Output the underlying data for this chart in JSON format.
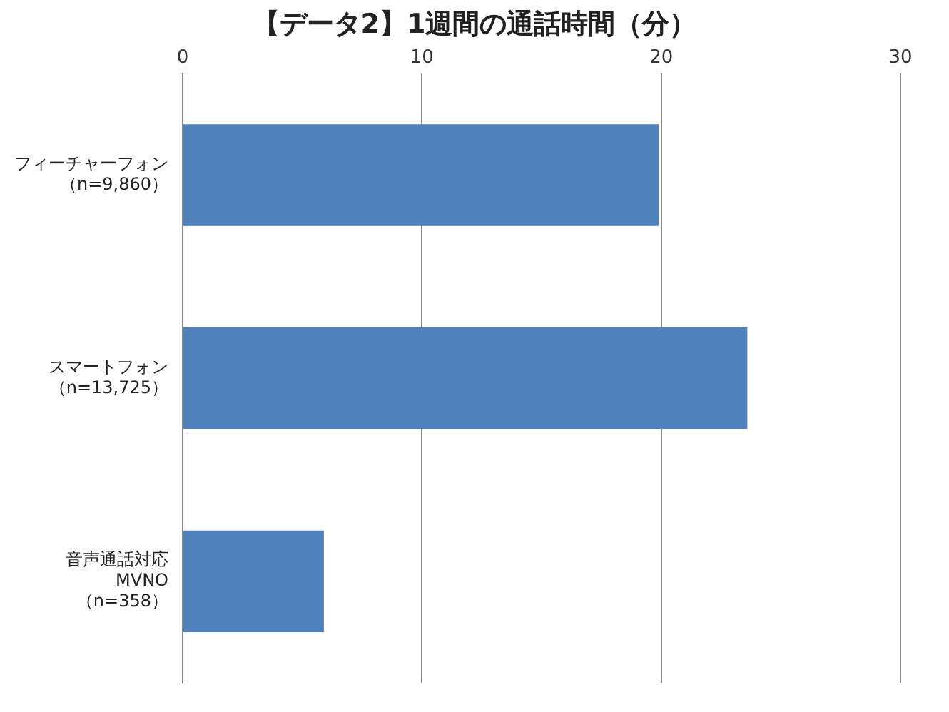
{
  "chart_data": {
    "type": "bar",
    "orientation": "horizontal",
    "title": "【データ2】1週間の通話時間（分）",
    "categories": [
      "フィーチャーフォン（n=9,860）",
      "スマートフォン（n=13,725）",
      "音声通話対応MVNO（n=358）"
    ],
    "values": [
      19.9,
      23.6,
      5.9
    ],
    "color": "#4f81bd",
    "xlim": [
      0,
      30
    ],
    "xticks": [
      0,
      10,
      20,
      30
    ],
    "grid": "x",
    "legend": false
  }
}
